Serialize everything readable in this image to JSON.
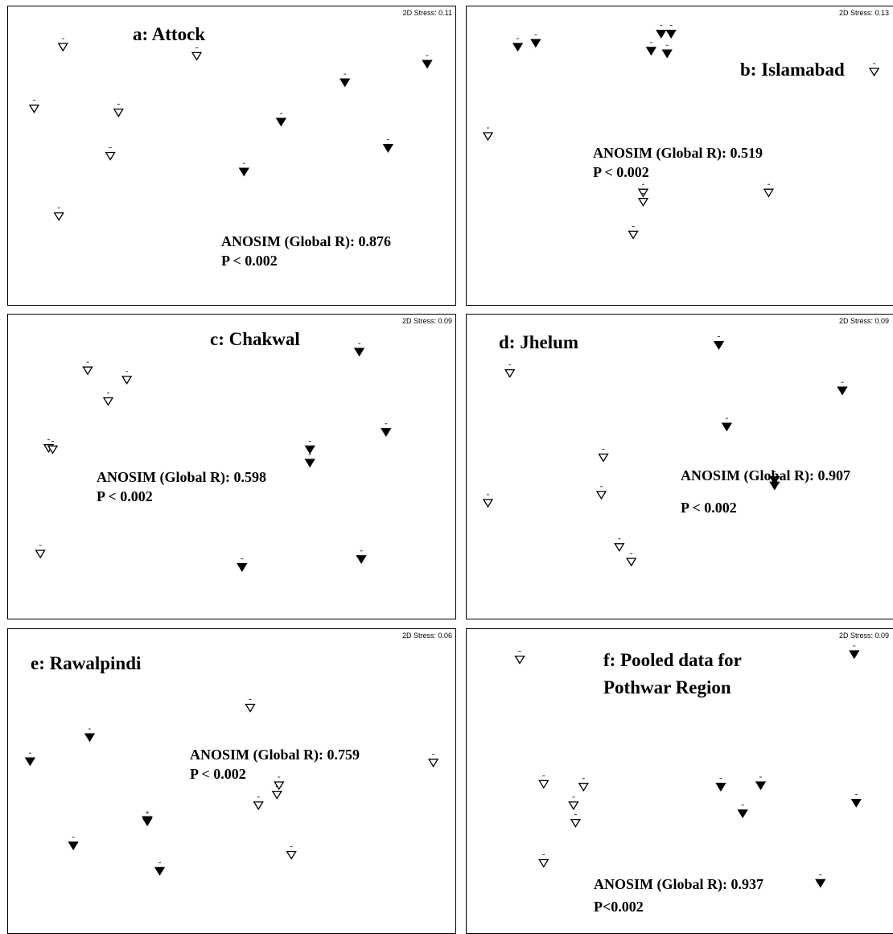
{
  "chart_data": [
    {
      "type": "scatter",
      "title": "a: Attock",
      "stress": "2D Stress: 0.11",
      "anosim": "ANOSIM (Global R): 0.876",
      "p": "P < 0.002",
      "series": [
        {
          "marker": "open-triangle",
          "points": [
            [
              -0.82,
              0.83
            ],
            [
              -0.17,
              0.76
            ],
            [
              -0.96,
              0.36
            ],
            [
              -0.55,
              0.33
            ],
            [
              -0.59,
              0.0
            ],
            [
              -0.84,
              -0.46
            ]
          ]
        },
        {
          "marker": "filled-triangle",
          "points": [
            [
              0.95,
              0.7
            ],
            [
              0.55,
              0.56
            ],
            [
              0.24,
              0.26
            ],
            [
              0.76,
              0.06
            ],
            [
              0.06,
              -0.12
            ]
          ]
        }
      ]
    },
    {
      "type": "scatter",
      "title": "b: Islamabad",
      "stress": "2D Stress: 0.13",
      "anosim": "ANOSIM (Global R): 0.519",
      "p": "P < 0.002",
      "series": [
        {
          "marker": "open-triangle",
          "points": [
            [
              0.96,
              0.64
            ],
            [
              -0.98,
              0.15
            ],
            [
              -0.2,
              -0.28
            ],
            [
              -0.2,
              -0.35
            ],
            [
              0.43,
              -0.28
            ],
            [
              -0.25,
              -0.6
            ]
          ]
        },
        {
          "marker": "filled-triangle",
          "points": [
            [
              -0.83,
              0.83
            ],
            [
              -0.74,
              0.86
            ],
            [
              -0.11,
              0.93
            ],
            [
              -0.06,
              0.93
            ],
            [
              -0.16,
              0.8
            ],
            [
              -0.08,
              0.78
            ]
          ]
        }
      ]
    },
    {
      "type": "scatter",
      "title": "c:  Chakwal",
      "stress": "2D Stress: 0.09",
      "anosim": "ANOSIM (Global R): 0.598",
      "p": "P < 0.002",
      "series": [
        {
          "marker": "open-triangle",
          "points": [
            [
              -0.7,
              0.72
            ],
            [
              -0.51,
              0.65
            ],
            [
              -0.6,
              0.49
            ],
            [
              -0.89,
              0.14
            ],
            [
              -0.87,
              0.13
            ],
            [
              -0.93,
              -0.65
            ]
          ]
        },
        {
          "marker": "filled-triangle",
          "points": [
            [
              0.62,
              0.86
            ],
            [
              0.75,
              0.26
            ],
            [
              0.38,
              0.13
            ],
            [
              0.38,
              0.03
            ],
            [
              0.63,
              -0.69
            ],
            [
              0.05,
              -0.75
            ]
          ]
        }
      ]
    },
    {
      "type": "scatter",
      "title": "d: Jhelum",
      "stress": "2D Stress: 0.09",
      "anosim": "ANOSIM (Global R): 0.907",
      "p": "P < 0.002",
      "series": [
        {
          "marker": "open-triangle",
          "points": [
            [
              -0.87,
              0.7
            ],
            [
              -0.4,
              0.07
            ],
            [
              -0.41,
              -0.21
            ],
            [
              -0.98,
              -0.27
            ],
            [
              -0.32,
              -0.6
            ],
            [
              -0.26,
              -0.71
            ]
          ]
        },
        {
          "marker": "filled-triangle",
          "points": [
            [
              0.18,
              0.91
            ],
            [
              0.8,
              0.57
            ],
            [
              0.22,
              0.3
            ],
            [
              0.46,
              -0.1
            ],
            [
              0.46,
              -0.14
            ],
            [
              1.13,
              -0.32
            ]
          ]
        }
      ]
    },
    {
      "type": "scatter",
      "title": "e: Rawalpindi",
      "stress": "2D Stress: 0.06",
      "anosim": "ANOSIM (Global R): 0.759",
      "p": "P < 0.002",
      "series": [
        {
          "marker": "open-triangle",
          "points": [
            [
              0.09,
              0.55
            ],
            [
              0.98,
              0.14
            ],
            [
              0.23,
              -0.03
            ],
            [
              0.13,
              -0.18
            ],
            [
              0.22,
              -0.1
            ],
            [
              0.29,
              -0.55
            ]
          ]
        },
        {
          "marker": "filled-triangle",
          "points": [
            [
              -0.69,
              0.33
            ],
            [
              -0.98,
              0.15
            ],
            [
              -0.41,
              -0.29
            ],
            [
              -0.41,
              -0.3
            ],
            [
              -0.77,
              -0.48
            ],
            [
              -0.35,
              -0.67
            ]
          ]
        }
      ]
    },
    {
      "type": "scatter",
      "title": "f: Pooled data for\nPothwar Region",
      "stress": "2D Stress: 0.09",
      "anosim": "ANOSIM (Global R): 0.937",
      "p": "P<0.002",
      "series": [
        {
          "marker": "open-triangle",
          "points": [
            [
              -0.82,
              0.91
            ],
            [
              -0.7,
              -0.02
            ],
            [
              -0.5,
              -0.04
            ],
            [
              -0.55,
              -0.18
            ],
            [
              -0.54,
              -0.31
            ],
            [
              -0.7,
              -0.61
            ]
          ]
        },
        {
          "marker": "filled-triangle",
          "points": [
            [
              0.86,
              0.95
            ],
            [
              0.19,
              -0.04
            ],
            [
              0.39,
              -0.03
            ],
            [
              0.87,
              -0.16
            ],
            [
              0.3,
              -0.24
            ],
            [
              0.69,
              -0.76
            ]
          ]
        }
      ]
    }
  ]
}
